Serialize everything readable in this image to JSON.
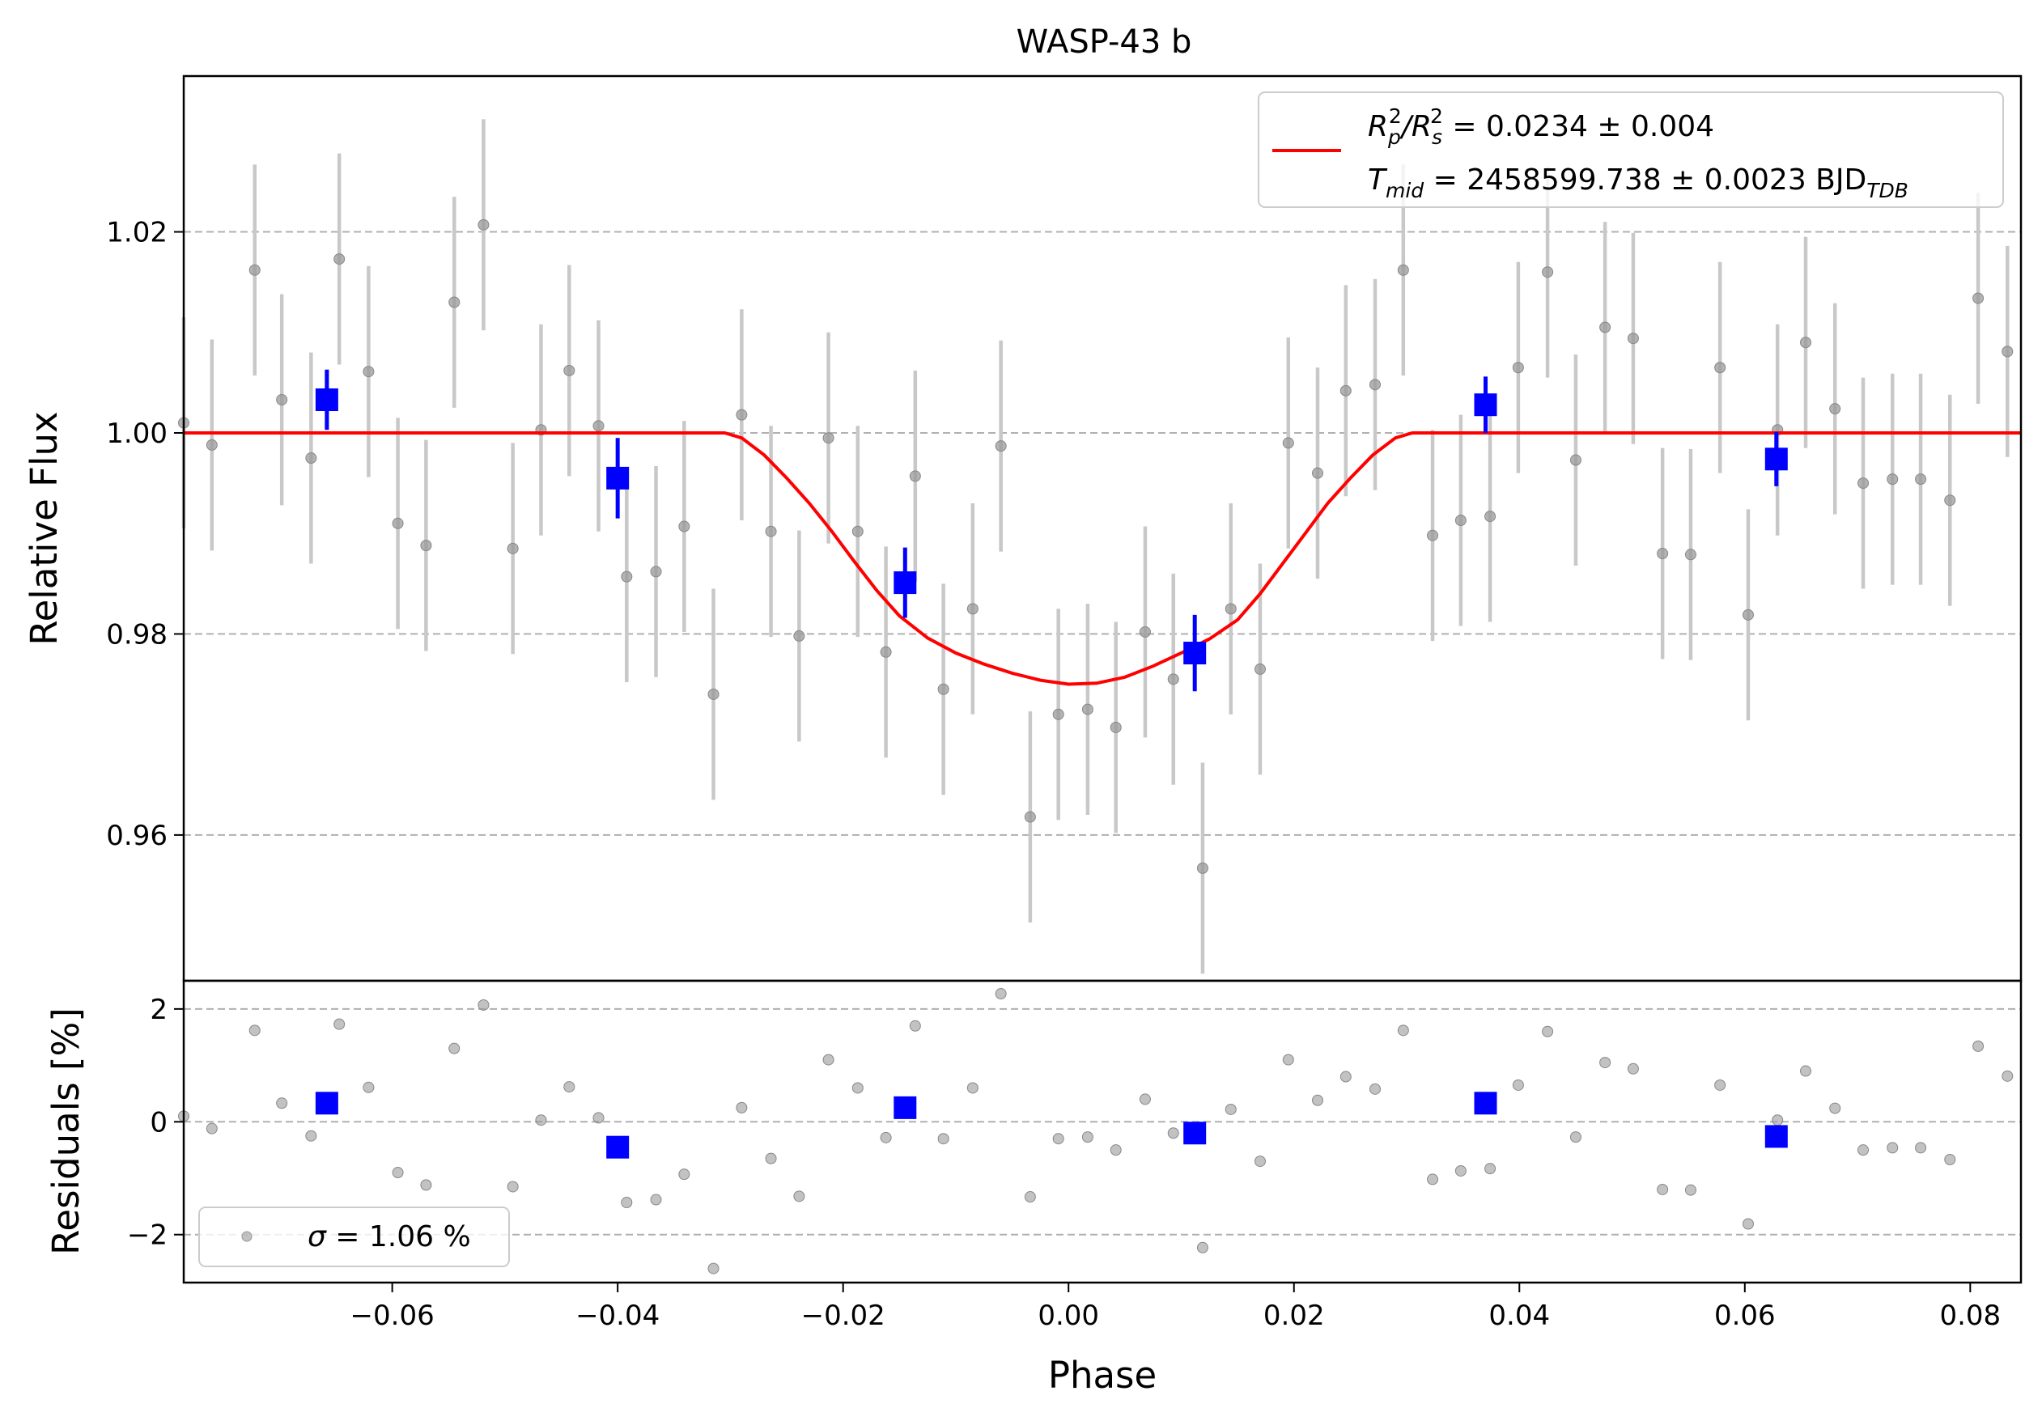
{
  "chart_data": {
    "type": "scatter",
    "title": "WASP-43 b",
    "xlabel": "Phase",
    "xlim": [
      -0.0785,
      0.0845
    ],
    "xticks": [
      {
        "value": -0.06,
        "label": "−0.06"
      },
      {
        "value": -0.04,
        "label": "−0.04"
      },
      {
        "value": -0.02,
        "label": "−0.02"
      },
      {
        "value": 0.0,
        "label": "0.00"
      },
      {
        "value": 0.02,
        "label": "0.02"
      },
      {
        "value": 0.04,
        "label": "0.04"
      },
      {
        "value": 0.06,
        "label": "0.06"
      },
      {
        "value": 0.08,
        "label": "0.08"
      }
    ],
    "panels": {
      "flux": {
        "ylabel": "Relative Flux",
        "ylim": [
          0.9455,
          1.0355
        ],
        "yticks": [
          {
            "value": 0.96,
            "label": "0.96"
          },
          {
            "value": 0.98,
            "label": "0.98"
          },
          {
            "value": 1.0,
            "label": "1.00"
          },
          {
            "value": 1.02,
            "label": "1.02"
          }
        ],
        "grid": true
      },
      "residuals": {
        "ylabel": "Residuals [%]",
        "ylim": [
          -2.85,
          2.5
        ],
        "yticks": [
          {
            "value": -2,
            "label": "−2"
          },
          {
            "value": 0,
            "label": "0"
          },
          {
            "value": 2,
            "label": "2"
          }
        ],
        "grid": true
      }
    },
    "legend_flux": {
      "placement": "upper-right",
      "line1_prefix": "R",
      "line1_sub1": "p",
      "line1_sup1": "2",
      "line1_slash": "/R",
      "line1_sub2": "s",
      "line1_sup2": "2",
      "line1_value": " = 0.0234 ± 0.004",
      "line2_prefix": "T",
      "line2_sub": "mid",
      "line2_value": " = 2458599.738 ± 0.0023 BJD",
      "line2_unit_sub": "TDB"
    },
    "legend_residuals": {
      "placement": "lower-left",
      "sigma_symbol": "σ",
      "text": " = 1.06 %"
    },
    "colors": {
      "raw": "#999999",
      "raw_error": "#c8c8c8",
      "binned": "#0000ff",
      "model": "#ff0000",
      "grid": "#b0b0b0"
    },
    "model": {
      "name": "transit model",
      "baseline": 1.0,
      "depth_min": 0.975,
      "x": [
        -0.0785,
        -0.0305,
        -0.029,
        -0.027,
        -0.025,
        -0.023,
        -0.021,
        -0.019,
        -0.017,
        -0.015,
        -0.0125,
        -0.01,
        -0.0075,
        -0.005,
        -0.0025,
        0.0,
        0.0025,
        0.005,
        0.0075,
        0.01,
        0.0125,
        0.015,
        0.017,
        0.019,
        0.021,
        0.023,
        0.025,
        0.027,
        0.029,
        0.0305,
        0.0845
      ],
      "y": [
        1.0,
        1.0,
        0.9995,
        0.9978,
        0.9955,
        0.993,
        0.9902,
        0.9872,
        0.9843,
        0.9818,
        0.9796,
        0.9781,
        0.977,
        0.9761,
        0.9754,
        0.975,
        0.9751,
        0.9757,
        0.9768,
        0.9781,
        0.9795,
        0.9814,
        0.984,
        0.987,
        0.99,
        0.993,
        0.9955,
        0.9978,
        0.9995,
        1.0,
        1.0
      ]
    },
    "raw": {
      "x": [
        -0.0785,
        -0.076,
        -0.0722,
        -0.0698,
        -0.0672,
        -0.0647,
        -0.0621,
        -0.0595,
        -0.057,
        -0.0545,
        -0.0519,
        -0.0493,
        -0.0468,
        -0.0443,
        -0.0417,
        -0.0392,
        -0.0366,
        -0.0341,
        -0.0315,
        -0.029,
        -0.0264,
        -0.0239,
        -0.0213,
        -0.0187,
        -0.0162,
        -0.0136,
        -0.0111,
        -0.0085,
        -0.006,
        -0.0034,
        -0.0009,
        0.0017,
        0.0042,
        0.0068,
        0.0093,
        0.0119,
        0.0144,
        0.017,
        0.0195,
        0.0221,
        0.0246,
        0.0272,
        0.0297,
        0.0323,
        0.0348,
        0.0374,
        0.0399,
        0.0425,
        0.045,
        0.0476,
        0.0501,
        0.0527,
        0.0552,
        0.0578,
        0.0603,
        0.0629,
        0.0654,
        0.068,
        0.0705,
        0.0731,
        0.0756,
        0.0782,
        0.0807,
        0.0833
      ],
      "y": [
        1.001,
        0.9988,
        1.0162,
        1.0033,
        0.9975,
        1.0173,
        1.0061,
        0.991,
        0.9888,
        1.013,
        1.0207,
        0.9885,
        1.0003,
        1.0062,
        1.0007,
        0.9857,
        0.9862,
        0.9907,
        0.974,
        1.0018,
        0.9902,
        0.9798,
        0.9995,
        0.9902,
        0.9782,
        0.9957,
        0.9745,
        0.9825,
        0.9987,
        0.9618,
        0.972,
        0.9725,
        0.9707,
        0.9802,
        0.9755,
        0.9567,
        0.9825,
        0.9765,
        0.999,
        0.996,
        1.0042,
        1.0048,
        1.0162,
        0.9898,
        0.9913,
        0.9917,
        1.0065,
        1.016,
        0.9973,
        1.0105,
        1.0094,
        0.988,
        0.9879,
        1.0065,
        0.9819,
        1.0003,
        1.009,
        1.0024,
        0.995,
        0.9954,
        0.9954,
        0.9933,
        1.0134,
        1.0081
      ],
      "err": [
        0.0105,
        0.0105,
        0.0105,
        0.0105,
        0.0105,
        0.0105,
        0.0105,
        0.0105,
        0.0105,
        0.0105,
        0.0105,
        0.0105,
        0.0105,
        0.0105,
        0.0105,
        0.0105,
        0.0105,
        0.0105,
        0.0105,
        0.0105,
        0.0105,
        0.0105,
        0.0105,
        0.0105,
        0.0105,
        0.0105,
        0.0105,
        0.0105,
        0.0105,
        0.0105,
        0.0105,
        0.0105,
        0.0105,
        0.0105,
        0.0105,
        0.0105,
        0.0105,
        0.0105,
        0.0105,
        0.0105,
        0.0105,
        0.0105,
        0.0105,
        0.0105,
        0.0105,
        0.0105,
        0.0105,
        0.0105,
        0.0105,
        0.0105,
        0.0105,
        0.0105,
        0.0105,
        0.0105,
        0.0105,
        0.0105,
        0.0105,
        0.0105,
        0.0105,
        0.0105,
        0.0105,
        0.0105,
        0.0105,
        0.0105
      ],
      "residuals": [
        0.1,
        -0.12,
        1.62,
        0.33,
        -0.25,
        1.73,
        0.61,
        -0.9,
        -1.12,
        1.3,
        2.07,
        -1.15,
        0.03,
        0.62,
        0.07,
        -1.43,
        -1.38,
        -0.93,
        -2.6,
        0.25,
        -0.65,
        -1.32,
        1.1,
        0.6,
        -0.28,
        1.7,
        -0.3,
        0.6,
        2.27,
        -1.33,
        -0.3,
        -0.27,
        -0.5,
        0.4,
        -0.2,
        -2.23,
        0.22,
        -0.7,
        1.1,
        0.38,
        0.8,
        0.58,
        1.62,
        -1.02,
        -0.87,
        -0.83,
        0.65,
        1.6,
        -0.27,
        1.05,
        0.94,
        -1.2,
        -1.21,
        0.65,
        -1.81,
        0.03,
        0.9,
        0.24,
        -0.5,
        -0.46,
        -0.46,
        -0.67,
        1.34,
        0.81
      ]
    },
    "binned": {
      "x": [
        -0.0658,
        -0.04,
        -0.0145,
        0.0112,
        0.037,
        0.0628
      ],
      "y": [
        1.0033,
        0.9955,
        0.9851,
        0.9781,
        1.0028,
        0.9974
      ],
      "err": [
        0.003,
        0.004,
        0.0035,
        0.0038,
        0.0028,
        0.0027
      ],
      "residuals": [
        0.33,
        -0.45,
        0.25,
        -0.2,
        0.33,
        -0.26
      ]
    }
  }
}
